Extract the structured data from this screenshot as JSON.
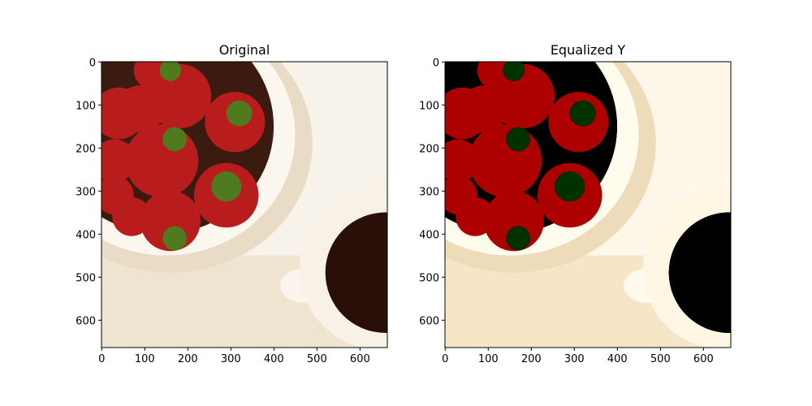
{
  "chart_data": [
    {
      "type": "image",
      "title": "Original",
      "xlim": [
        -0.5,
        663.5
      ],
      "ylim": [
        663.5,
        -0.5
      ],
      "xticks": [
        0,
        100,
        200,
        300,
        400,
        500,
        600
      ],
      "yticks": [
        0,
        100,
        200,
        300,
        400,
        500,
        600
      ]
    },
    {
      "type": "image",
      "title": "Equalized Y",
      "xlim": [
        -0.5,
        663.5
      ],
      "ylim": [
        663.5,
        -0.5
      ],
      "xticks": [
        0,
        100,
        200,
        300,
        400,
        500,
        600
      ],
      "yticks": [
        0,
        100,
        200,
        300,
        400,
        500,
        600
      ]
    }
  ]
}
